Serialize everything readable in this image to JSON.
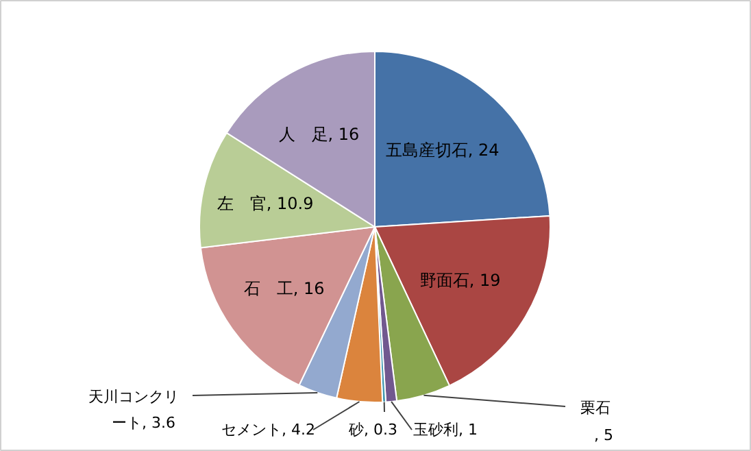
{
  "chart_data": {
    "type": "pie",
    "categories": [
      "五島産切石",
      "野面石",
      "栗石",
      "玉砂利",
      "砂",
      "セメント",
      "天川コンクリート",
      "石　工",
      "左　官",
      "人　足"
    ],
    "values": [
      24,
      19,
      5,
      1,
      0.3,
      4.2,
      3.6,
      16,
      10.9,
      16
    ],
    "colors": [
      "#4572a7",
      "#aa4643",
      "#89a54e",
      "#71588f",
      "#4198af",
      "#db843d",
      "#93a9cf",
      "#d19392",
      "#b9cd96",
      "#a99bbd"
    ],
    "value_labels": [
      ", 24",
      ", 19",
      ", 5",
      ", 1",
      ", 0.3",
      ", 4.2",
      ", 3.6",
      ", 16",
      ", 10.9",
      ", 16"
    ]
  }
}
